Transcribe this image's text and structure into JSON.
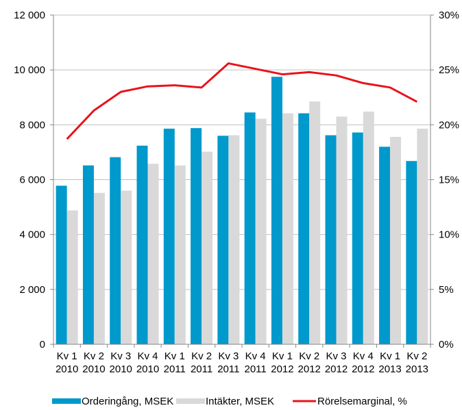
{
  "chart_data": {
    "type": "bar",
    "categories": [
      [
        "Kv 1",
        "2010"
      ],
      [
        "Kv 2",
        "2010"
      ],
      [
        "Kv 3",
        "2010"
      ],
      [
        "Kv 4",
        "2010"
      ],
      [
        "Kv 1",
        "2011"
      ],
      [
        "Kv 2",
        "2011"
      ],
      [
        "Kv 3",
        "2011"
      ],
      [
        "Kv 4",
        "2011"
      ],
      [
        "Kv 1",
        "2012"
      ],
      [
        "Kv 2",
        "2012"
      ],
      [
        "Kv 3",
        "2012"
      ],
      [
        "Kv 4",
        "2012"
      ],
      [
        "Kv 1",
        "2013"
      ],
      [
        "Kv 2",
        "2013"
      ]
    ],
    "series": [
      {
        "name": "Orderingång, MSEK",
        "kind": "bar",
        "axis": "left",
        "color": "#0099CC",
        "values": [
          5780,
          6520,
          6820,
          7240,
          7860,
          7880,
          7600,
          8450,
          9750,
          8420,
          7620,
          7720,
          7200,
          6680
        ]
      },
      {
        "name": "Intäkter, MSEK",
        "kind": "bar",
        "axis": "left",
        "color": "#D9D9D9",
        "values": [
          4880,
          5520,
          5600,
          6580,
          6520,
          7020,
          7620,
          8220,
          8420,
          8850,
          8300,
          8480,
          7560,
          7860
        ]
      },
      {
        "name": "Rörelsemarginal, %",
        "kind": "line",
        "axis": "right",
        "color": "#E8131B",
        "values": [
          18.7,
          21.3,
          23.0,
          23.5,
          23.6,
          23.4,
          25.6,
          25.1,
          24.6,
          24.8,
          24.5,
          23.8,
          23.4,
          22.1
        ]
      }
    ],
    "y_left": {
      "min": 0,
      "max": 12000,
      "ticks": [
        0,
        2000,
        4000,
        6000,
        8000,
        10000,
        12000
      ],
      "tick_labels": [
        "0",
        "2 000",
        "4 000",
        "6 000",
        "8 000",
        "10 000",
        "12 000"
      ]
    },
    "y_right": {
      "min": 0,
      "max": 30,
      "ticks": [
        0,
        5,
        10,
        15,
        20,
        25,
        30
      ],
      "tick_labels": [
        "0%",
        "5%",
        "10%",
        "15%",
        "20%",
        "25%",
        "30%"
      ]
    },
    "grid": true,
    "legend": "bottom"
  }
}
